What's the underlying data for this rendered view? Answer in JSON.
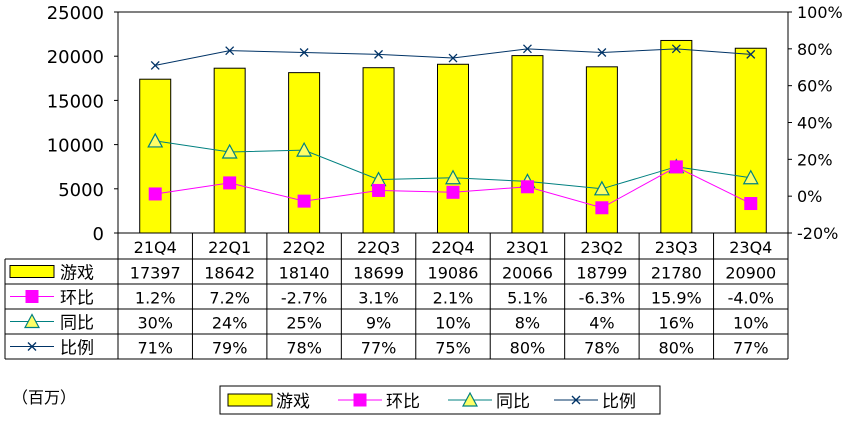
{
  "chart_data": {
    "type": "bar",
    "unit_note": "（百万）",
    "categories": [
      "21Q4",
      "22Q1",
      "22Q2",
      "22Q3",
      "22Q4",
      "23Q1",
      "23Q2",
      "23Q3",
      "23Q4"
    ],
    "y_left": {
      "ylim": [
        0,
        25000
      ],
      "ticks": [
        "0",
        "5000",
        "10000",
        "15000",
        "20000",
        "25000"
      ],
      "tick_values": [
        0,
        5000,
        10000,
        15000,
        20000,
        25000
      ]
    },
    "y_right": {
      "ylim": [
        -20,
        100
      ],
      "ticks": [
        "-20%",
        "0%",
        "20%",
        "40%",
        "60%",
        "80%",
        "100%"
      ],
      "tick_values": [
        -20,
        0,
        20,
        40,
        60,
        80,
        100
      ]
    },
    "series": [
      {
        "name": "游戏",
        "type": "bar",
        "axis": "left",
        "color": "#ffff00",
        "values": [
          17397,
          18642,
          18140,
          18699,
          19086,
          20066,
          18799,
          21780,
          20900
        ],
        "labels": [
          "17397",
          "18642",
          "18140",
          "18699",
          "19086",
          "20066",
          "18799",
          "21780",
          "20900"
        ]
      },
      {
        "name": "环比",
        "type": "line",
        "axis": "right",
        "color": "#ff00ff",
        "marker": "square",
        "values": [
          1.2,
          7.2,
          -2.7,
          3.1,
          2.1,
          5.1,
          -6.3,
          15.9,
          -4.0
        ],
        "labels": [
          "1.2%",
          "7.2%",
          "-2.7%",
          "3.1%",
          "2.1%",
          "5.1%",
          "-6.3%",
          "15.9%",
          "-4.0%"
        ]
      },
      {
        "name": "同比",
        "type": "line",
        "axis": "right",
        "color": "#008080",
        "marker": "triangle",
        "values": [
          30,
          24,
          25,
          9,
          10,
          8,
          4,
          16,
          10
        ],
        "labels": [
          "30%",
          "24%",
          "25%",
          "9%",
          "10%",
          "8%",
          "4%",
          "16%",
          "10%"
        ]
      },
      {
        "name": "比例",
        "type": "line",
        "axis": "right",
        "color": "#003366",
        "marker": "x",
        "values": [
          71,
          79,
          78,
          77,
          75,
          80,
          78,
          80,
          77
        ],
        "labels": [
          "71%",
          "79%",
          "78%",
          "77%",
          "75%",
          "80%",
          "78%",
          "80%",
          "77%"
        ]
      }
    ],
    "legend_position": "bottom",
    "grid": false
  }
}
